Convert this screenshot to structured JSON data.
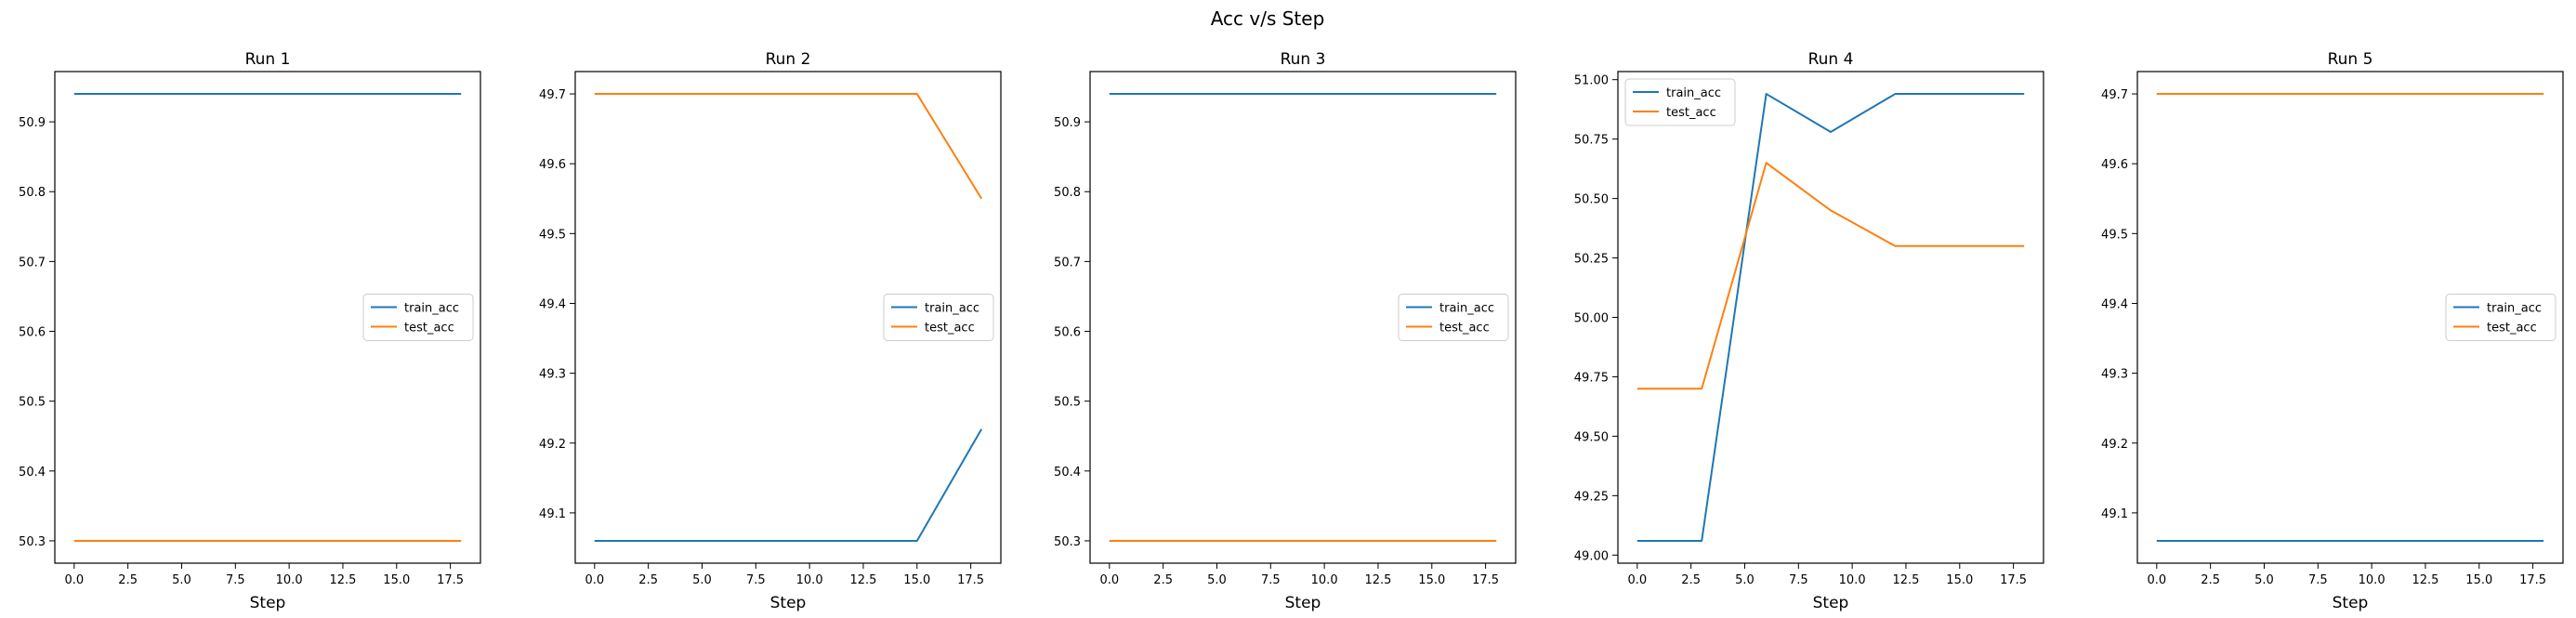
{
  "figure": {
    "suptitle": "Acc v/s Step"
  },
  "colors": {
    "train": "#1f77b4",
    "test": "#ff7f0e",
    "axis": "#000000"
  },
  "chart_data": [
    {
      "type": "line",
      "title": "Run 1",
      "xlabel": "Step",
      "ylabel": "",
      "xlim": [
        -0.9,
        18.9
      ],
      "ylim": [
        50.268,
        50.972
      ],
      "xticks": [
        0.0,
        2.5,
        5.0,
        7.5,
        10.0,
        12.5,
        15.0,
        17.5
      ],
      "xtick_labels": [
        "0.0",
        "2.5",
        "5.0",
        "7.5",
        "10.0",
        "12.5",
        "15.0",
        "17.5"
      ],
      "yticks": [
        50.3,
        50.4,
        50.5,
        50.6,
        50.7,
        50.8,
        50.9
      ],
      "ytick_labels": [
        "50.3",
        "50.4",
        "50.5",
        "50.6",
        "50.7",
        "50.8",
        "50.9"
      ],
      "legend": "center-right",
      "x": [
        0,
        3,
        6,
        9,
        12,
        15,
        18
      ],
      "series": [
        {
          "name": "train_acc",
          "color": "#1f77b4",
          "values": [
            50.94,
            50.94,
            50.94,
            50.94,
            50.94,
            50.94,
            50.94
          ]
        },
        {
          "name": "test_acc",
          "color": "#ff7f0e",
          "values": [
            50.3,
            50.3,
            50.3,
            50.3,
            50.3,
            50.3,
            50.3
          ]
        }
      ]
    },
    {
      "type": "line",
      "title": "Run 2",
      "xlabel": "Step",
      "ylabel": "",
      "xlim": [
        -0.9,
        18.9
      ],
      "ylim": [
        49.028,
        49.732
      ],
      "xticks": [
        0.0,
        2.5,
        5.0,
        7.5,
        10.0,
        12.5,
        15.0,
        17.5
      ],
      "xtick_labels": [
        "0.0",
        "2.5",
        "5.0",
        "7.5",
        "10.0",
        "12.5",
        "15.0",
        "17.5"
      ],
      "yticks": [
        49.1,
        49.2,
        49.3,
        49.4,
        49.5,
        49.6,
        49.7
      ],
      "ytick_labels": [
        "49.1",
        "49.2",
        "49.3",
        "49.4",
        "49.5",
        "49.6",
        "49.7"
      ],
      "legend": "center-right",
      "x": [
        0,
        3,
        6,
        9,
        12,
        15,
        18
      ],
      "series": [
        {
          "name": "train_acc",
          "color": "#1f77b4",
          "values": [
            49.06,
            49.06,
            49.06,
            49.06,
            49.06,
            49.06,
            49.22
          ]
        },
        {
          "name": "test_acc",
          "color": "#ff7f0e",
          "values": [
            49.7,
            49.7,
            49.7,
            49.7,
            49.7,
            49.7,
            49.55
          ]
        }
      ]
    },
    {
      "type": "line",
      "title": "Run 3",
      "xlabel": "Step",
      "ylabel": "",
      "xlim": [
        -0.9,
        18.9
      ],
      "ylim": [
        50.268,
        50.972
      ],
      "xticks": [
        0.0,
        2.5,
        5.0,
        7.5,
        10.0,
        12.5,
        15.0,
        17.5
      ],
      "xtick_labels": [
        "0.0",
        "2.5",
        "5.0",
        "7.5",
        "10.0",
        "12.5",
        "15.0",
        "17.5"
      ],
      "yticks": [
        50.3,
        50.4,
        50.5,
        50.6,
        50.7,
        50.8,
        50.9
      ],
      "ytick_labels": [
        "50.3",
        "50.4",
        "50.5",
        "50.6",
        "50.7",
        "50.8",
        "50.9"
      ],
      "legend": "center-right",
      "x": [
        0,
        3,
        6,
        9,
        12,
        15,
        18
      ],
      "series": [
        {
          "name": "train_acc",
          "color": "#1f77b4",
          "values": [
            50.94,
            50.94,
            50.94,
            50.94,
            50.94,
            50.94,
            50.94
          ]
        },
        {
          "name": "test_acc",
          "color": "#ff7f0e",
          "values": [
            50.3,
            50.3,
            50.3,
            50.3,
            50.3,
            50.3,
            50.3
          ]
        }
      ]
    },
    {
      "type": "line",
      "title": "Run 4",
      "xlabel": "Step",
      "ylabel": "",
      "xlim": [
        -0.9,
        18.9
      ],
      "ylim": [
        48.966,
        51.034
      ],
      "xticks": [
        0.0,
        2.5,
        5.0,
        7.5,
        10.0,
        12.5,
        15.0,
        17.5
      ],
      "xtick_labels": [
        "0.0",
        "2.5",
        "5.0",
        "7.5",
        "10.0",
        "12.5",
        "15.0",
        "17.5"
      ],
      "yticks": [
        49.0,
        49.25,
        49.5,
        49.75,
        50.0,
        50.25,
        50.5,
        50.75,
        51.0
      ],
      "ytick_labels": [
        "49.00",
        "49.25",
        "49.50",
        "49.75",
        "50.00",
        "50.25",
        "50.50",
        "50.75",
        "51.00"
      ],
      "legend": "top-left",
      "x": [
        0,
        3,
        6,
        9,
        12,
        15,
        18
      ],
      "series": [
        {
          "name": "train_acc",
          "color": "#1f77b4",
          "values": [
            49.06,
            49.06,
            50.94,
            50.78,
            50.94,
            50.94,
            50.94
          ]
        },
        {
          "name": "test_acc",
          "color": "#ff7f0e",
          "values": [
            49.7,
            49.7,
            50.65,
            50.45,
            50.3,
            50.3,
            50.3
          ]
        }
      ]
    },
    {
      "type": "line",
      "title": "Run 5",
      "xlabel": "Step",
      "ylabel": "",
      "xlim": [
        -0.9,
        18.9
      ],
      "ylim": [
        49.028,
        49.732
      ],
      "xticks": [
        0.0,
        2.5,
        5.0,
        7.5,
        10.0,
        12.5,
        15.0,
        17.5
      ],
      "xtick_labels": [
        "0.0",
        "2.5",
        "5.0",
        "7.5",
        "10.0",
        "12.5",
        "15.0",
        "17.5"
      ],
      "yticks": [
        49.1,
        49.2,
        49.3,
        49.4,
        49.5,
        49.6,
        49.7
      ],
      "ytick_labels": [
        "49.1",
        "49.2",
        "49.3",
        "49.4",
        "49.5",
        "49.6",
        "49.7"
      ],
      "legend": "center-right",
      "x": [
        0,
        3,
        6,
        9,
        12,
        15,
        18
      ],
      "series": [
        {
          "name": "train_acc",
          "color": "#1f77b4",
          "values": [
            49.06,
            49.06,
            49.06,
            49.06,
            49.06,
            49.06,
            49.06
          ]
        },
        {
          "name": "test_acc",
          "color": "#ff7f0e",
          "values": [
            49.7,
            49.7,
            49.7,
            49.7,
            49.7,
            49.7,
            49.7
          ]
        }
      ]
    }
  ]
}
